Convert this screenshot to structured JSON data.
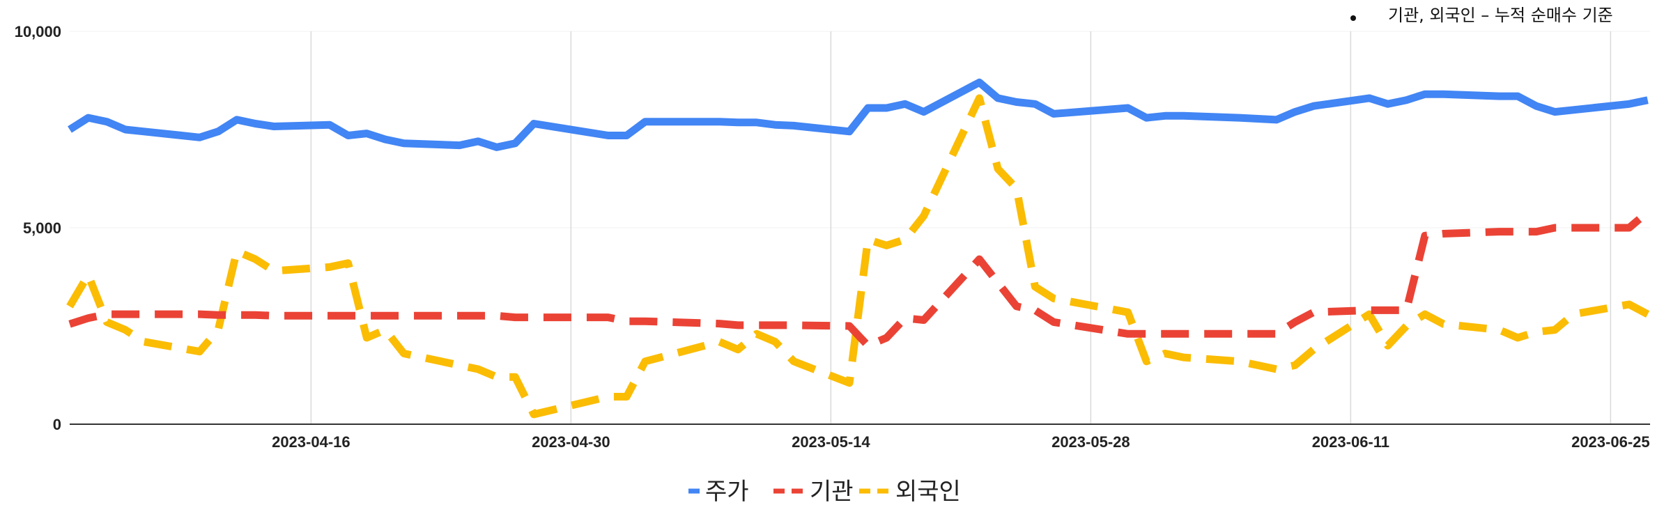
{
  "chart_data": {
    "type": "line",
    "note": "기관, 외국인 – 누적 순매수 기준",
    "ylim": [
      0,
      10000
    ],
    "y_ticks": [
      "0",
      "5,000",
      "10,000"
    ],
    "x_tick_labels": [
      "2023-04-16",
      "2023-04-30",
      "2023-05-14",
      "2023-05-28",
      "2023-06-11",
      "2023-06-25"
    ],
    "grid": "vertical",
    "legend_position": "bottom-center",
    "x": [
      "2023-04-03",
      "2023-04-04",
      "2023-04-05",
      "2023-04-06",
      "2023-04-07",
      "2023-04-10",
      "2023-04-11",
      "2023-04-12",
      "2023-04-13",
      "2023-04-14",
      "2023-04-17",
      "2023-04-18",
      "2023-04-19",
      "2023-04-20",
      "2023-04-21",
      "2023-04-24",
      "2023-04-25",
      "2023-04-26",
      "2023-04-27",
      "2023-04-28",
      "2023-05-02",
      "2023-05-03",
      "2023-05-04",
      "2023-05-08",
      "2023-05-09",
      "2023-05-10",
      "2023-05-11",
      "2023-05-12",
      "2023-05-15",
      "2023-05-16",
      "2023-05-17",
      "2023-05-18",
      "2023-05-19",
      "2023-05-22",
      "2023-05-23",
      "2023-05-24",
      "2023-05-25",
      "2023-05-26",
      "2023-05-30",
      "2023-05-31",
      "2023-06-01",
      "2023-06-02",
      "2023-06-05",
      "2023-06-07",
      "2023-06-08",
      "2023-06-09",
      "2023-06-12",
      "2023-06-13",
      "2023-06-14",
      "2023-06-15",
      "2023-06-16",
      "2023-06-19",
      "2023-06-20",
      "2023-06-21",
      "2023-06-22",
      "2023-06-23",
      "2023-06-26",
      "2023-06-27"
    ],
    "series": [
      {
        "name": "주가",
        "color": "#4285f4",
        "dash": "solid",
        "values": [
          7500,
          7800,
          7700,
          7500,
          7450,
          7300,
          7450,
          7750,
          7650,
          7580,
          7620,
          7350,
          7400,
          7250,
          7150,
          7100,
          7200,
          7050,
          7150,
          7650,
          7350,
          7350,
          7700,
          7700,
          7680,
          7680,
          7620,
          7600,
          7450,
          8050,
          8050,
          8150,
          7950,
          8700,
          8300,
          8200,
          8150,
          7900,
          8050,
          7800,
          7850,
          7850,
          7800,
          7750,
          7950,
          8100,
          8300,
          8150,
          8250,
          8400,
          8400,
          8350,
          8350,
          8100,
          7950,
          8000,
          8150,
          8250
        ]
      },
      {
        "name": "기관",
        "color": "#ea4335",
        "dash": "dashed",
        "values": [
          2550,
          2700,
          2800,
          2800,
          2800,
          2800,
          2780,
          2780,
          2780,
          2760,
          2760,
          2760,
          2760,
          2760,
          2760,
          2760,
          2760,
          2760,
          2720,
          2720,
          2720,
          2620,
          2620,
          2560,
          2520,
          2520,
          2520,
          2520,
          2500,
          2000,
          2200,
          2700,
          2650,
          4200,
          3600,
          3000,
          2900,
          2600,
          2300,
          2300,
          2300,
          2300,
          2300,
          2300,
          2600,
          2850,
          2900,
          2900,
          2900,
          4800,
          4850,
          4900,
          4900,
          4900,
          5000,
          5000,
          5000,
          5400
        ]
      },
      {
        "name": "외국인",
        "color": "#fbbc04",
        "dash": "dashed",
        "values": [
          3000,
          3800,
          2600,
          2400,
          2100,
          1850,
          2400,
          4400,
          4200,
          3900,
          4000,
          4100,
          2200,
          2400,
          1800,
          1500,
          1400,
          1200,
          1200,
          250,
          700,
          700,
          1600,
          2100,
          1900,
          2300,
          2100,
          1600,
          1050,
          4700,
          4550,
          4700,
          5300,
          8300,
          6500,
          6000,
          3500,
          3200,
          2850,
          1600,
          1800,
          1700,
          1600,
          1400,
          1500,
          1900,
          2800,
          2000,
          2500,
          2800,
          2550,
          2400,
          2200,
          2350,
          2400,
          2800,
          3050,
          2800
        ]
      }
    ]
  }
}
